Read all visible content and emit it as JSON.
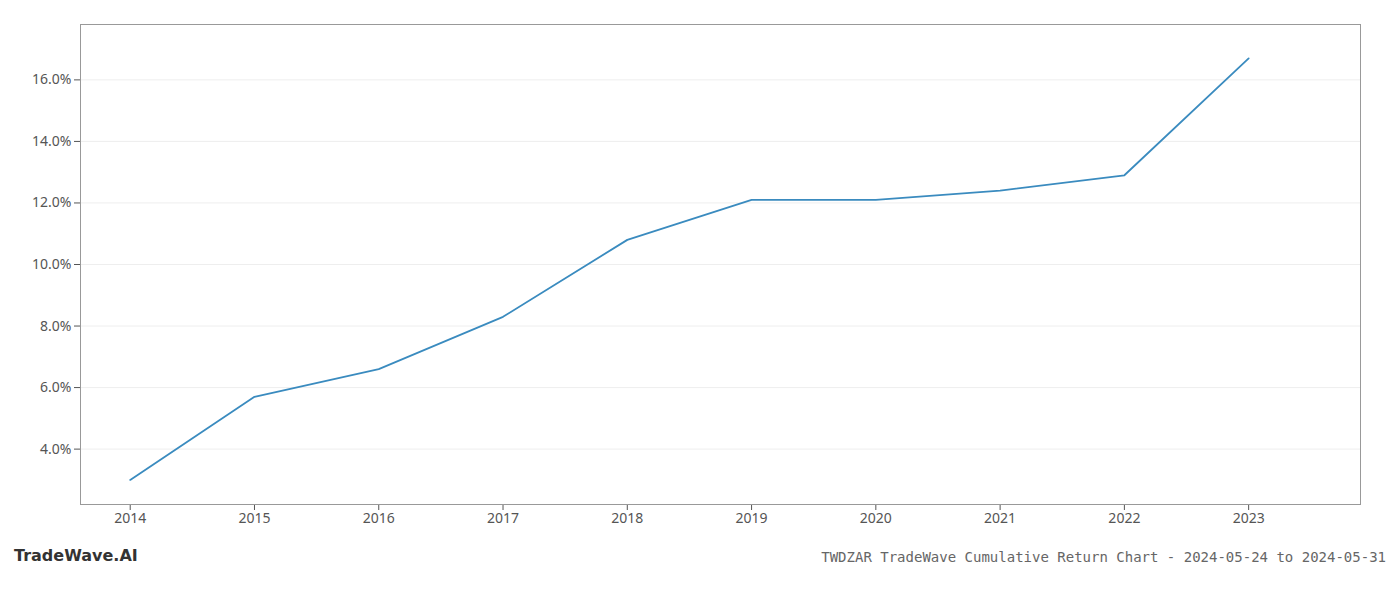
{
  "chart_data": {
    "type": "line",
    "title": "TWDZAR TradeWave Cumulative Return Chart - 2024-05-24 to 2024-05-31",
    "annotations": [
      "TradeWave.AI"
    ],
    "x": [
      2014,
      2015,
      2016,
      2017,
      2018,
      2019,
      2020,
      2021,
      2022,
      2023
    ],
    "values": [
      0.03,
      0.057,
      0.066,
      0.083,
      0.108,
      0.121,
      0.121,
      0.124,
      0.129,
      0.167
    ],
    "color": "#3a8bbf",
    "xlim": [
      2013.6,
      2023.9
    ],
    "xticks": [
      2014,
      2015,
      2016,
      2017,
      2018,
      2019,
      2020,
      2021,
      2022,
      2023
    ],
    "ylim": [
      0.022,
      0.178
    ],
    "yticks": [
      {
        "value": 0.04,
        "label": "4.0%"
      },
      {
        "value": 0.06,
        "label": "6.0%"
      },
      {
        "value": 0.08,
        "label": "8.0%"
      },
      {
        "value": 0.1,
        "label": "10.0%"
      },
      {
        "value": 0.12,
        "label": "12.0%"
      },
      {
        "value": 0.14,
        "label": "14.0%"
      },
      {
        "value": 0.16,
        "label": "16.0%"
      }
    ],
    "grid": "y"
  }
}
